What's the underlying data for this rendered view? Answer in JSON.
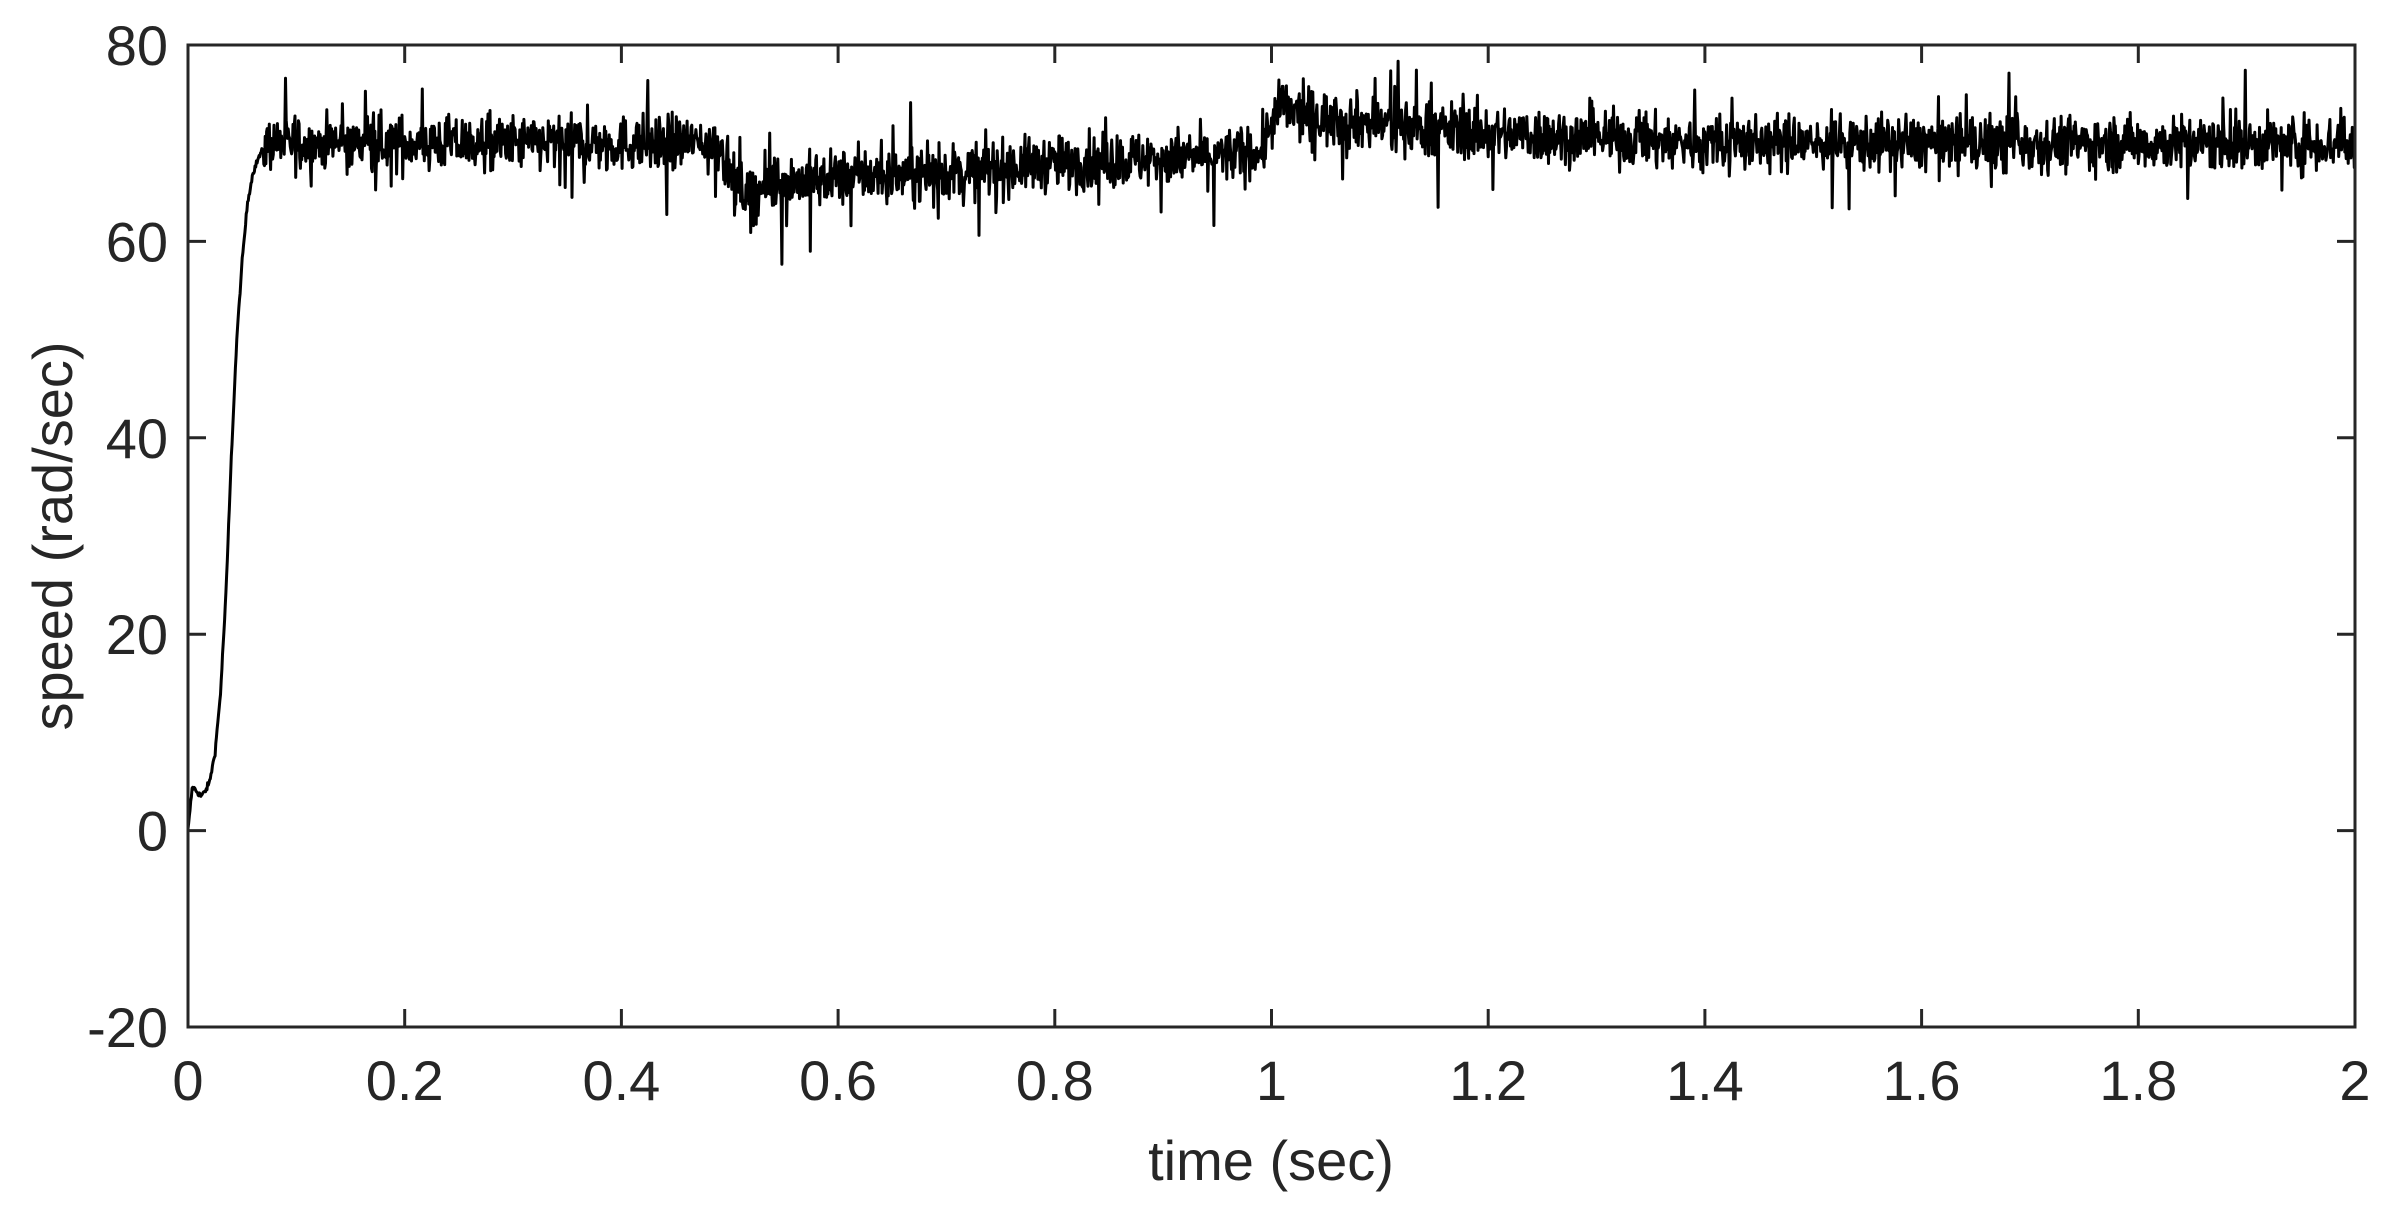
{
  "chart_data": {
    "type": "line",
    "title": "",
    "xlabel": "time (sec)",
    "ylabel": "speed (rad/sec)",
    "xlim": [
      0,
      2
    ],
    "ylim": [
      -20,
      80
    ],
    "xticks": [
      0,
      0.2,
      0.4,
      0.6,
      0.8,
      1,
      1.2,
      1.4,
      1.6,
      1.8,
      2
    ],
    "xtick_labels": [
      "0",
      "0.2",
      "0.4",
      "0.6",
      "0.8",
      "1",
      "1.2",
      "1.4",
      "1.6",
      "1.8",
      "2"
    ],
    "yticks": [
      -20,
      0,
      20,
      40,
      60,
      80
    ],
    "ytick_labels": [
      "-20",
      "0",
      "20",
      "40",
      "60",
      "80"
    ],
    "grid": false,
    "line_color": "#000000",
    "axis_color": "#262626",
    "series": [
      {
        "x": [
          0,
          0.004,
          0.008,
          0.012,
          0.016,
          0.02,
          0.025,
          0.03,
          0.035,
          0.04,
          0.045,
          0.05,
          0.055,
          0.06,
          0.065,
          0.07,
          0.075,
          0.08,
          0.09,
          0.1,
          0.2,
          0.3,
          0.4,
          0.49,
          0.5,
          0.51,
          0.52,
          0.55,
          0.6,
          0.7,
          0.8,
          0.9,
          0.99,
          1.0,
          1.01,
          1.02,
          1.05,
          1.1,
          1.2,
          1.3,
          1.4,
          1.5,
          1.6,
          1.7,
          1.8,
          1.9,
          2.0
        ],
        "values": [
          0,
          4.5,
          4,
          3.5,
          4,
          5,
          8,
          14,
          24,
          38,
          50,
          58,
          64,
          67,
          68.5,
          69.5,
          70,
          70,
          70,
          70,
          70,
          70,
          70,
          70,
          67,
          65,
          65,
          66,
          66.5,
          67,
          68,
          68.5,
          69,
          72,
          74,
          73,
          72.5,
          72,
          71,
          70.5,
          70,
          70,
          70,
          70,
          70,
          70,
          70
        ]
      }
    ]
  }
}
